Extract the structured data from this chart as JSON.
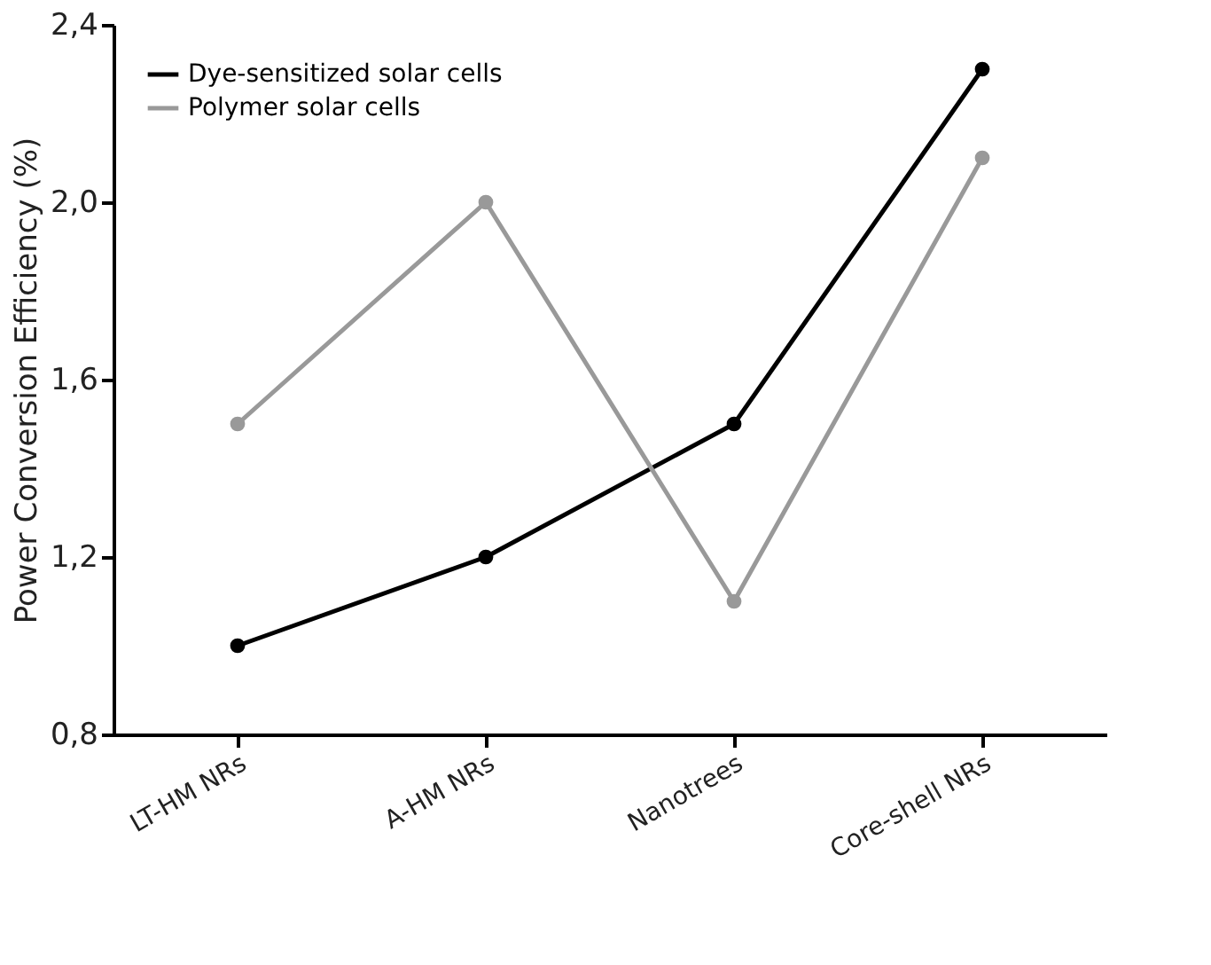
{
  "chart_data": {
    "type": "line",
    "ylabel": "Power Conversion Efficiency (%)",
    "categories": [
      "LT-HM NRs",
      "A-HM NRs",
      "Nanotrees",
      "Core-shell NRs"
    ],
    "series": [
      {
        "name": "Dye-sensitized solar cells",
        "color": "#000000",
        "values": [
          1.0,
          1.2,
          1.5,
          2.3
        ]
      },
      {
        "name": "Polymer solar cells",
        "color": "#999999",
        "values": [
          1.5,
          2.0,
          1.1,
          2.1
        ]
      }
    ],
    "ylim": [
      0.8,
      2.4
    ],
    "yticks": [
      {
        "value": 0.8,
        "label": "0,8"
      },
      {
        "value": 1.2,
        "label": "1,2"
      },
      {
        "value": 1.6,
        "label": "1,6"
      },
      {
        "value": 2.0,
        "label": "2,0"
      },
      {
        "value": 2.4,
        "label": "2,4"
      }
    ],
    "legend": "top left",
    "marker": "circle",
    "line_style": "solid",
    "grid": false
  }
}
